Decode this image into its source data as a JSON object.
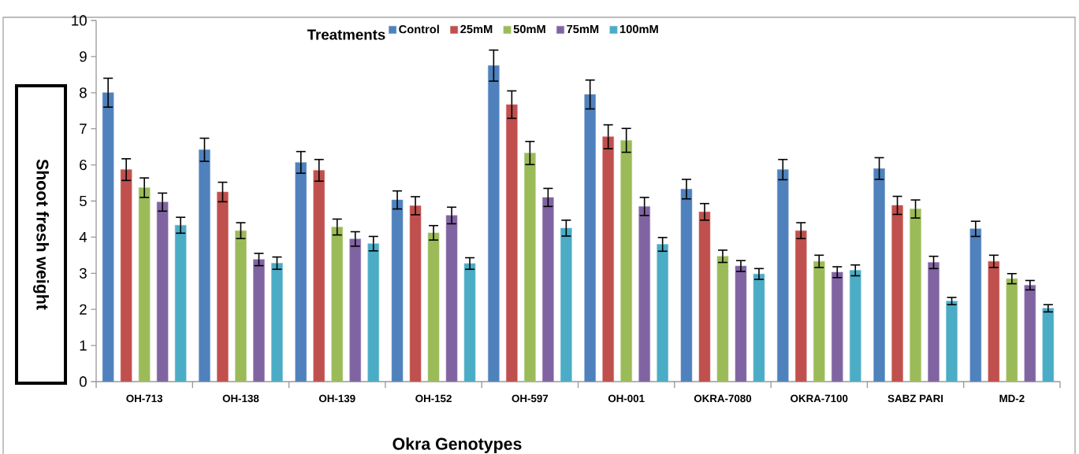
{
  "chart_data": {
    "type": "bar",
    "xlabel": "Okra Genotypes",
    "ylabel": "Shoot fresh weight",
    "legend_title": "Treatments",
    "legend": "top",
    "categories": [
      "OH-713",
      "OH-138",
      "OH-139",
      "OH-152",
      "OH-597",
      "OH-001",
      "OKRA-7080",
      "OKRA-7100",
      "SABZ PARI",
      "MD-2"
    ],
    "ylim": [
      0,
      10
    ],
    "yticks": [
      0,
      1,
      2,
      3,
      4,
      5,
      6,
      7,
      8,
      9,
      10
    ],
    "series": [
      {
        "name": "Control",
        "color": "#4f81bd",
        "values": [
          8.0,
          6.42,
          6.07,
          5.03,
          8.75,
          7.95,
          5.33,
          5.87,
          5.9,
          4.23
        ],
        "errors": [
          0.4,
          0.32,
          0.3,
          0.25,
          0.43,
          0.4,
          0.27,
          0.28,
          0.3,
          0.21
        ]
      },
      {
        "name": "25mM",
        "color": "#c0504d",
        "values": [
          5.87,
          5.25,
          5.85,
          4.87,
          7.67,
          6.78,
          4.7,
          4.18,
          4.88,
          3.33
        ],
        "errors": [
          0.3,
          0.27,
          0.3,
          0.25,
          0.38,
          0.33,
          0.23,
          0.22,
          0.25,
          0.17
        ]
      },
      {
        "name": "50mM",
        "color": "#9bbb59",
        "values": [
          5.37,
          4.18,
          4.28,
          4.12,
          6.33,
          6.68,
          3.47,
          3.33,
          4.78,
          2.85
        ],
        "errors": [
          0.27,
          0.22,
          0.22,
          0.2,
          0.32,
          0.33,
          0.17,
          0.17,
          0.25,
          0.14
        ]
      },
      {
        "name": "75mM",
        "color": "#8064a2",
        "values": [
          4.97,
          3.38,
          3.95,
          4.6,
          5.1,
          4.85,
          3.2,
          3.03,
          3.3,
          2.67
        ],
        "errors": [
          0.25,
          0.17,
          0.2,
          0.23,
          0.25,
          0.25,
          0.15,
          0.15,
          0.17,
          0.13
        ]
      },
      {
        "name": "100mM",
        "color": "#4bacc6",
        "values": [
          4.33,
          3.28,
          3.82,
          3.27,
          4.25,
          3.8,
          2.98,
          3.08,
          2.23,
          2.03
        ],
        "errors": [
          0.22,
          0.17,
          0.2,
          0.16,
          0.22,
          0.19,
          0.15,
          0.15,
          0.1,
          0.1
        ]
      }
    ]
  }
}
